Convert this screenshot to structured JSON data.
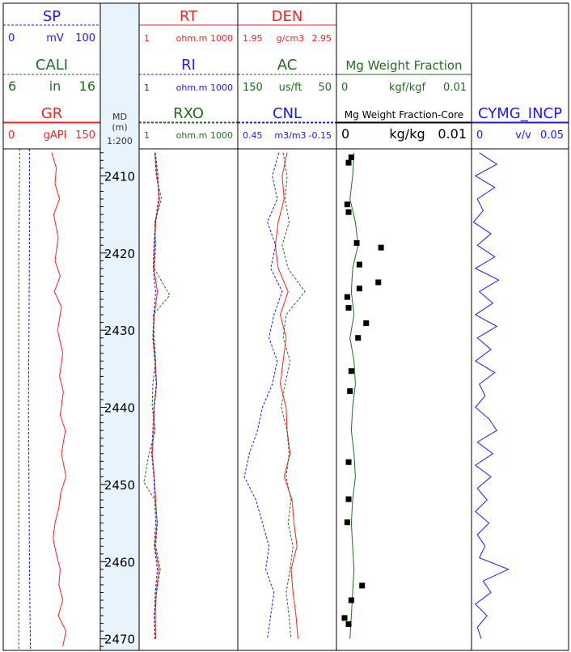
{
  "md": {
    "label": "MD",
    "unit": "(m)",
    "scale": "1:200",
    "depth_range": [
      2406.5,
      2471.5
    ],
    "ticks": [
      "2410",
      "2420",
      "2430",
      "2440",
      "2450",
      "2460",
      "2470"
    ],
    "tick_values": [
      2410,
      2420,
      2430,
      2440,
      2450,
      2460,
      2470
    ],
    "band_color": "#e8f3fc"
  },
  "tracks": [
    {
      "id": "track1",
      "headers": [
        {
          "name": "SP",
          "color": "#1a1aff",
          "min": "0",
          "unit": "mV",
          "max": "100",
          "dash": "dashed"
        },
        {
          "name": "CALI",
          "color": "#1f6e1f",
          "min": "6",
          "unit": "in",
          "max": "16",
          "dash": "dashed"
        },
        {
          "name": "GR",
          "color": "#ff1f1f",
          "min": "0",
          "unit": "gAPI",
          "max": "150",
          "dash": "solid"
        }
      ]
    },
    {
      "id": "track2",
      "headers": [
        {
          "name": "RT",
          "color": "#ff1f1f",
          "min": "1",
          "unit": "ohm.m",
          "max": "1000",
          "dash": "solid"
        },
        {
          "name": "RI",
          "color": "#1a1aff",
          "min": "1",
          "unit": "ohm.m",
          "max": "1000",
          "dash": "dashed"
        },
        {
          "name": "RXO",
          "color": "#1f6e1f",
          "min": "1",
          "unit": "ohm.m",
          "max": "1000",
          "dash": "dashed"
        }
      ]
    },
    {
      "id": "track3",
      "headers": [
        {
          "name": "DEN",
          "color": "#ff1f1f",
          "min": "1.95",
          "unit": "g/cm3",
          "max": "2.95",
          "dash": "solid"
        },
        {
          "name": "AC",
          "color": "#1f6e1f",
          "min": "150",
          "unit": "us/ft",
          "max": "50",
          "dash": "dashed"
        },
        {
          "name": "CNL",
          "color": "#1a1aff",
          "min": "0.45",
          "unit": "m3/m3",
          "max": "-0.15",
          "dash": "dashed"
        }
      ]
    },
    {
      "id": "track4",
      "headers": [
        {
          "name": "Mg Weight Fraction",
          "color": "#1f6e1f",
          "min": "0",
          "unit": "kgf/kgf",
          "max": "0.01",
          "dash": "solid"
        },
        {
          "name": "Mg Weight Fraction-Core",
          "color": "#000000",
          "min": "0",
          "unit": "kg/kg",
          "max": "0.01",
          "dash": "solid"
        }
      ]
    },
    {
      "id": "track5",
      "headers": [
        {
          "name": "CYMG_INCP",
          "color": "#1a1aff",
          "min": "0",
          "unit": "v/v",
          "max": "0.05",
          "dash": "solid"
        }
      ]
    }
  ],
  "chart_data": {
    "type": "line",
    "y_axis": "MD (m)",
    "depth_range": [
      2406.5,
      2471.5
    ],
    "series": [
      {
        "name": "SP",
        "track": 1,
        "unit": "mV",
        "range": [
          0,
          100
        ],
        "depth": [
          2406.5,
          2420,
          2440,
          2460,
          2471.5
        ],
        "values": [
          27,
          27,
          26,
          27,
          28
        ]
      },
      {
        "name": "CALI",
        "track": 1,
        "unit": "in",
        "range": [
          6,
          16
        ],
        "depth": [
          2406.5,
          2420,
          2440,
          2460,
          2471.5
        ],
        "values": [
          7.7,
          7.6,
          7.6,
          7.6,
          7.6
        ]
      },
      {
        "name": "GR",
        "track": 1,
        "unit": "gAPI",
        "range": [
          0,
          150
        ],
        "depth": [
          2407,
          2409,
          2411,
          2413,
          2415,
          2418,
          2421,
          2423,
          2425,
          2427,
          2430,
          2433,
          2436,
          2438,
          2441,
          2443,
          2446,
          2449,
          2451,
          2453,
          2455,
          2457,
          2459,
          2461,
          2463,
          2465,
          2467,
          2469,
          2471
        ],
        "values": [
          75,
          82,
          80,
          87,
          78,
          85,
          80,
          88,
          79,
          90,
          84,
          92,
          87,
          93,
          88,
          96,
          90,
          97,
          89,
          86,
          80,
          77,
          82,
          88,
          86,
          92,
          85,
          97,
          92
        ]
      },
      {
        "name": "RT",
        "track": 2,
        "unit": "ohm.m",
        "range": [
          1,
          1000
        ],
        "depth": [
          2407,
          2410,
          2413,
          2416,
          2419,
          2422,
          2425,
          2428,
          2431,
          2434,
          2437,
          2440,
          2443,
          2446,
          2449,
          2452,
          2455,
          2458,
          2461,
          2464,
          2467,
          2470
        ],
        "values": [
          3.0,
          3.5,
          4.2,
          3.2,
          3.0,
          2.8,
          3.6,
          2.9,
          2.7,
          3.1,
          3.4,
          2.9,
          2.8,
          2.5,
          2.9,
          3.2,
          3.5,
          3.0,
          4.0,
          3.3,
          3.1,
          3.2
        ]
      },
      {
        "name": "RI",
        "track": 2,
        "unit": "ohm.m",
        "range": [
          1,
          1000
        ],
        "depth": [
          2407,
          2410,
          2413,
          2416,
          2419,
          2422,
          2425,
          2428,
          2431,
          2434,
          2437,
          2440,
          2443,
          2446,
          2449,
          2452,
          2455,
          2458,
          2461,
          2464,
          2467,
          2470
        ],
        "values": [
          3.1,
          3.8,
          3.9,
          3.1,
          2.8,
          2.7,
          3.2,
          2.8,
          2.6,
          3.0,
          3.3,
          2.8,
          2.6,
          2.4,
          2.8,
          3.0,
          3.2,
          2.9,
          3.6,
          3.1,
          2.9,
          3.0
        ]
      },
      {
        "name": "RXO",
        "track": 2,
        "unit": "ohm.m",
        "range": [
          1,
          1000
        ],
        "depth": [
          2407,
          2410,
          2413,
          2416,
          2419,
          2422,
          2425.5,
          2428,
          2431,
          2434,
          2437,
          2440,
          2443,
          2446,
          2449.7,
          2452,
          2455,
          2458,
          2461,
          2464,
          2467,
          2470
        ],
        "values": [
          3.0,
          3.3,
          4.8,
          3.0,
          3.2,
          2.9,
          8.5,
          2.7,
          2.9,
          3.2,
          2.6,
          2.5,
          3.1,
          2.0,
          1.4,
          3.0,
          3.6,
          3.2,
          4.4,
          3.4,
          3.0,
          3.1
        ]
      },
      {
        "name": "DEN",
        "track": 3,
        "unit": "g/cm3",
        "range": [
          1.95,
          2.95
        ],
        "depth": [
          2407,
          2410,
          2413,
          2416,
          2419,
          2422,
          2425,
          2428,
          2431,
          2434,
          2437,
          2440,
          2443,
          2446,
          2449,
          2452,
          2455,
          2458,
          2461,
          2464,
          2467,
          2470
        ],
        "values": [
          2.45,
          2.4,
          2.42,
          2.36,
          2.33,
          2.36,
          2.46,
          2.38,
          2.44,
          2.41,
          2.38,
          2.44,
          2.45,
          2.48,
          2.42,
          2.5,
          2.52,
          2.55,
          2.49,
          2.51,
          2.54,
          2.56
        ]
      },
      {
        "name": "AC",
        "track": 3,
        "unit": "us/ft",
        "range": [
          150,
          50
        ],
        "depth": [
          2407,
          2410,
          2413,
          2416,
          2419,
          2422,
          2425,
          2428,
          2431,
          2434,
          2437,
          2440,
          2443,
          2446,
          2449,
          2452,
          2455,
          2458,
          2461,
          2464,
          2467,
          2470
        ],
        "values": [
          104,
          100,
          102,
          98,
          105,
          99,
          82,
          101,
          104,
          97,
          102,
          106,
          100,
          98,
          101,
          96,
          99,
          94,
          97,
          101,
          98,
          96
        ]
      },
      {
        "name": "CNL",
        "track": 3,
        "unit": "m3/m3",
        "range": [
          0.45,
          -0.15
        ],
        "depth": [
          2407,
          2410,
          2413,
          2416,
          2419,
          2422,
          2425,
          2428,
          2431,
          2434,
          2437,
          2440,
          2443,
          2446,
          2449,
          2452,
          2455,
          2458,
          2461,
          2464,
          2467,
          2470
        ],
        "values": [
          0.2,
          0.24,
          0.21,
          0.27,
          0.22,
          0.25,
          0.18,
          0.23,
          0.26,
          0.21,
          0.24,
          0.3,
          0.33,
          0.38,
          0.41,
          0.34,
          0.3,
          0.26,
          0.28,
          0.23,
          0.25,
          0.27
        ]
      },
      {
        "name": "Mg Weight Fraction",
        "track": 4,
        "unit": "kgf/kgf",
        "range": [
          0,
          0.01
        ],
        "depth": [
          2407,
          2410,
          2413,
          2416,
          2419,
          2422,
          2425,
          2428,
          2431,
          2434,
          2437,
          2440,
          2443,
          2446,
          2449,
          2452,
          2455,
          2458,
          2461,
          2464,
          2467,
          2470
        ],
        "values": [
          0.0013,
          0.0012,
          0.001,
          0.0014,
          0.0016,
          0.0012,
          0.0011,
          0.0013,
          0.001,
          0.0013,
          0.0014,
          0.0012,
          0.0011,
          0.0013,
          0.0014,
          0.0012,
          0.0011,
          0.0012,
          0.0013,
          0.0012,
          0.0011,
          0.001
        ]
      },
      {
        "name": "Mg Weight Fraction-Core",
        "track": 4,
        "unit": "kg/kg",
        "range": [
          0,
          0.01
        ],
        "type": "scatter",
        "depth": [
          2407.6,
          2408.3,
          2413.7,
          2414.7,
          2418.7,
          2419.3,
          2421.5,
          2423.8,
          2424.6,
          2425.7,
          2427.1,
          2429.1,
          2431.0,
          2435.3,
          2437.9,
          2447.1,
          2451.9,
          2454.9,
          2463.1,
          2465.0,
          2467.3,
          2468.1
        ],
        "values": [
          0.0011,
          0.0009,
          0.0008,
          0.0009,
          0.0015,
          0.0033,
          0.0017,
          0.0031,
          0.0017,
          0.0008,
          0.0009,
          0.0022,
          0.0016,
          0.0011,
          0.001,
          0.0009,
          0.0009,
          0.0008,
          0.0019,
          0.0011,
          0.0006,
          0.0009
        ]
      },
      {
        "name": "CYMG_INCP",
        "track": 5,
        "unit": "v/v",
        "range": [
          0,
          0.05
        ],
        "depth": [
          2407,
          2408.5,
          2410,
          2411.5,
          2413,
          2414.5,
          2416,
          2417.5,
          2419,
          2420.5,
          2422,
          2423.5,
          2425,
          2426.5,
          2428,
          2429.5,
          2431,
          2432.5,
          2434,
          2435.5,
          2437,
          2438.5,
          2440,
          2441.5,
          2443,
          2444.5,
          2446,
          2447.5,
          2449,
          2450.5,
          2452,
          2453.5,
          2455,
          2456.5,
          2458,
          2459.5,
          2461,
          2462.5,
          2464,
          2465.5,
          2467,
          2468.5,
          2470
        ],
        "values": [
          0.004,
          0.013,
          0.002,
          0.012,
          0.003,
          0.006,
          0.001,
          0.01,
          0.003,
          0.012,
          0.002,
          0.014,
          0.004,
          0.011,
          0.002,
          0.013,
          0.003,
          0.01,
          0.002,
          0.012,
          0.004,
          0.007,
          0.002,
          0.009,
          0.013,
          0.003,
          0.011,
          0.002,
          0.01,
          0.003,
          0.008,
          0.002,
          0.009,
          0.003,
          0.007,
          0.004,
          0.019,
          0.006,
          0.01,
          0.002,
          0.008,
          0.003,
          0.005
        ]
      }
    ]
  }
}
